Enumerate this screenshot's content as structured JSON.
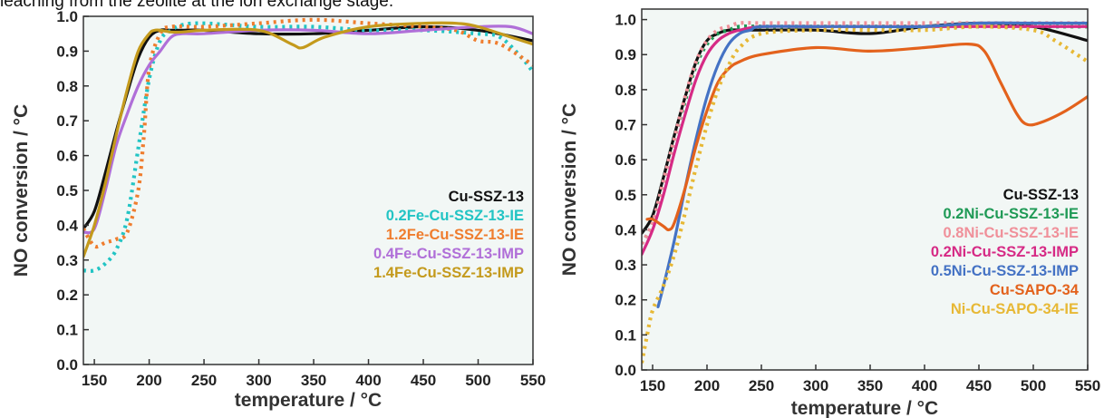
{
  "caption": "leaching from the zeolite at the ion exchange stage.",
  "colors": {
    "black": "#111111",
    "cyan": "#22c4c4",
    "orange": "#ef7d2e",
    "purple": "#b06fd8",
    "gold": "#c49a1c",
    "green": "#1f9a56",
    "pink": "#f0909a",
    "magenta": "#d62a85",
    "blue": "#4472c4",
    "darkorange": "#e3621c",
    "yellow": "#e7b835",
    "plot_bg": "#f2f7f5"
  },
  "chart_data": [
    {
      "type": "line",
      "xlabel": "temperature / °C",
      "ylabel": "NO conversion / °C",
      "xlim": [
        140,
        550
      ],
      "ylim": [
        0,
        1.0
      ],
      "xticks": [
        150,
        200,
        250,
        300,
        350,
        400,
        450,
        500,
        550
      ],
      "yticks": [
        0.0,
        0.1,
        0.2,
        0.3,
        0.4,
        0.5,
        0.6,
        0.7,
        0.8,
        0.9,
        1.0
      ],
      "legend_position": "lower-right",
      "series": [
        {
          "name": "Cu-SSZ-13",
          "color": "black",
          "dash": false,
          "x": [
            140,
            150,
            160,
            170,
            180,
            190,
            200,
            210,
            220,
            230,
            250,
            300,
            350,
            400,
            450,
            500,
            550
          ],
          "y": [
            0.39,
            0.44,
            0.55,
            0.67,
            0.78,
            0.88,
            0.94,
            0.96,
            0.96,
            0.96,
            0.96,
            0.95,
            0.95,
            0.96,
            0.97,
            0.96,
            0.93
          ]
        },
        {
          "name": "0.2Fe-Cu-SSZ-13-IE",
          "color": "cyan",
          "dash": true,
          "x": [
            140,
            150,
            160,
            170,
            180,
            190,
            200,
            210,
            220,
            230,
            250,
            300,
            350,
            400,
            450,
            500,
            520,
            540,
            550
          ],
          "y": [
            0.27,
            0.27,
            0.29,
            0.33,
            0.42,
            0.62,
            0.82,
            0.93,
            0.96,
            0.975,
            0.98,
            0.97,
            0.97,
            0.96,
            0.96,
            0.95,
            0.94,
            0.88,
            0.84
          ]
        },
        {
          "name": "1.2Fe-Cu-SSZ-13-IE",
          "color": "orange",
          "dash": true,
          "x": [
            140,
            150,
            160,
            170,
            180,
            190,
            195,
            200,
            210,
            220,
            250,
            300,
            350,
            400,
            450,
            480,
            500,
            520,
            550
          ],
          "y": [
            0.39,
            0.34,
            0.35,
            0.36,
            0.38,
            0.5,
            0.65,
            0.85,
            0.95,
            0.97,
            0.97,
            0.98,
            0.99,
            0.98,
            0.97,
            0.96,
            0.93,
            0.92,
            0.86
          ]
        },
        {
          "name": "0.4Fe-Cu-SSZ-13-IMP",
          "color": "purple",
          "dash": false,
          "x": [
            140,
            150,
            160,
            170,
            180,
            190,
            200,
            210,
            220,
            230,
            250,
            300,
            350,
            400,
            450,
            500,
            530,
            550
          ],
          "y": [
            0.38,
            0.39,
            0.5,
            0.63,
            0.72,
            0.8,
            0.86,
            0.9,
            0.94,
            0.95,
            0.95,
            0.96,
            0.96,
            0.95,
            0.96,
            0.97,
            0.97,
            0.95
          ]
        },
        {
          "name": "1.4Fe-Cu-SSZ-13-IMP",
          "color": "gold",
          "dash": false,
          "x": [
            140,
            150,
            160,
            170,
            180,
            190,
            200,
            205,
            210,
            220,
            230,
            250,
            300,
            330,
            340,
            360,
            400,
            450,
            480,
            500,
            530,
            550
          ],
          "y": [
            0.31,
            0.4,
            0.52,
            0.66,
            0.79,
            0.9,
            0.95,
            0.96,
            0.96,
            0.955,
            0.955,
            0.96,
            0.96,
            0.92,
            0.91,
            0.94,
            0.97,
            0.98,
            0.98,
            0.97,
            0.94,
            0.92
          ]
        }
      ]
    },
    {
      "type": "line",
      "xlabel": "temperature / °C",
      "ylabel": "NO conversion / °C",
      "xlim": [
        140,
        550
      ],
      "ylim": [
        0,
        1.03
      ],
      "xticks": [
        150,
        200,
        250,
        300,
        350,
        400,
        450,
        500,
        550
      ],
      "yticks": [
        0.0,
        0.1,
        0.2,
        0.3,
        0.4,
        0.5,
        0.6,
        0.7,
        0.8,
        0.9,
        1.0
      ],
      "legend_position": "lower-right",
      "series": [
        {
          "name": "Cu-SSZ-13",
          "color": "black",
          "dash": false,
          "x": [
            140,
            150,
            160,
            170,
            180,
            190,
            200,
            210,
            220,
            230,
            250,
            300,
            350,
            400,
            450,
            500,
            550
          ],
          "y": [
            0.39,
            0.44,
            0.55,
            0.67,
            0.78,
            0.88,
            0.94,
            0.96,
            0.97,
            0.97,
            0.97,
            0.97,
            0.96,
            0.98,
            0.99,
            0.98,
            0.94
          ]
        },
        {
          "name": "0.2Ni-Cu-SSZ-13-IE",
          "color": "green",
          "dash": true,
          "x": [
            140,
            150,
            160,
            170,
            180,
            190,
            200,
            210,
            220,
            230,
            250,
            300,
            350,
            400,
            450,
            500,
            550
          ],
          "y": [
            0.36,
            0.42,
            0.54,
            0.66,
            0.77,
            0.87,
            0.93,
            0.96,
            0.97,
            0.98,
            0.98,
            0.98,
            0.98,
            0.98,
            0.98,
            0.98,
            0.98
          ]
        },
        {
          "name": "0.8Ni-Cu-SSZ-13-IE",
          "color": "pink",
          "dash": true,
          "x": [
            140,
            150,
            160,
            170,
            180,
            190,
            200,
            210,
            220,
            230,
            250,
            300,
            350,
            400,
            450,
            500,
            550
          ],
          "y": [
            0.36,
            0.42,
            0.54,
            0.66,
            0.78,
            0.88,
            0.94,
            0.97,
            0.98,
            0.99,
            0.99,
            0.99,
            0.99,
            0.99,
            0.99,
            0.99,
            0.99
          ]
        },
        {
          "name": "0.2Ni-Cu-SSZ-13-IMP",
          "color": "magenta",
          "dash": false,
          "x": [
            140,
            150,
            160,
            170,
            180,
            190,
            200,
            210,
            220,
            230,
            250,
            300,
            350,
            400,
            450,
            500,
            550
          ],
          "y": [
            0.33,
            0.4,
            0.5,
            0.62,
            0.73,
            0.83,
            0.9,
            0.94,
            0.96,
            0.97,
            0.98,
            0.98,
            0.98,
            0.98,
            0.98,
            0.98,
            0.98
          ]
        },
        {
          "name": "0.5Ni-Cu-SSZ-13-IMP",
          "color": "blue",
          "dash": false,
          "x": [
            155,
            160,
            170,
            180,
            190,
            200,
            210,
            220,
            230,
            240,
            250,
            300,
            350,
            400,
            450,
            500,
            550
          ],
          "y": [
            0.18,
            0.24,
            0.37,
            0.52,
            0.66,
            0.78,
            0.87,
            0.93,
            0.96,
            0.97,
            0.98,
            0.98,
            0.98,
            0.98,
            0.99,
            0.99,
            0.99
          ]
        },
        {
          "name": "Cu-SAPO-34",
          "color": "darkorange",
          "dash": false,
          "x": [
            145,
            150,
            160,
            165,
            170,
            180,
            190,
            200,
            210,
            220,
            230,
            250,
            300,
            350,
            400,
            440,
            455,
            470,
            485,
            495,
            510,
            530,
            550
          ],
          "y": [
            0.43,
            0.43,
            0.41,
            0.4,
            0.42,
            0.52,
            0.64,
            0.74,
            0.82,
            0.86,
            0.88,
            0.9,
            0.92,
            0.91,
            0.92,
            0.93,
            0.91,
            0.82,
            0.73,
            0.7,
            0.71,
            0.74,
            0.78
          ]
        },
        {
          "name": "Ni-Cu-SAPO-34-IE",
          "color": "yellow",
          "dash": true,
          "x": [
            140,
            145,
            150,
            160,
            170,
            180,
            190,
            200,
            210,
            220,
            230,
            250,
            300,
            350,
            400,
            450,
            500,
            520,
            550
          ],
          "y": [
            0.02,
            0.1,
            0.17,
            0.24,
            0.33,
            0.45,
            0.58,
            0.7,
            0.8,
            0.87,
            0.92,
            0.96,
            0.97,
            0.97,
            0.97,
            0.98,
            0.97,
            0.94,
            0.88
          ]
        }
      ]
    }
  ]
}
